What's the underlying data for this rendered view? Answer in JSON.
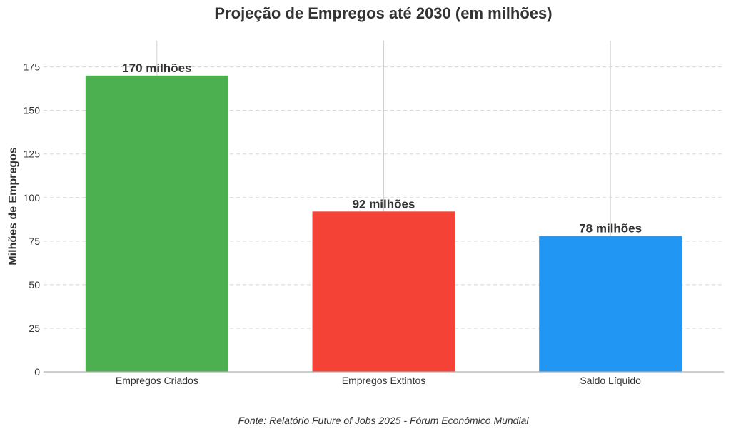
{
  "chart_data": {
    "type": "bar",
    "title": "Projeção de Empregos até 2030 (em milhões)",
    "ylabel": "Milhões de Empregos",
    "xlabel": "",
    "categories": [
      "Empregos Criados",
      "Empregos Extintos",
      "Saldo Líquido"
    ],
    "values": [
      170,
      92,
      78
    ],
    "data_labels": [
      "170 milhões",
      "92 milhões",
      "78 milhões"
    ],
    "colors": [
      "#4caf50",
      "#f44336",
      "#2196f3"
    ],
    "ylim": [
      0,
      190
    ],
    "yticks": [
      0,
      25,
      50,
      75,
      100,
      125,
      150,
      175
    ],
    "grid": true,
    "source": "Fonte: Relatório Future of Jobs 2025 - Fórum Econômico Mundial"
  }
}
